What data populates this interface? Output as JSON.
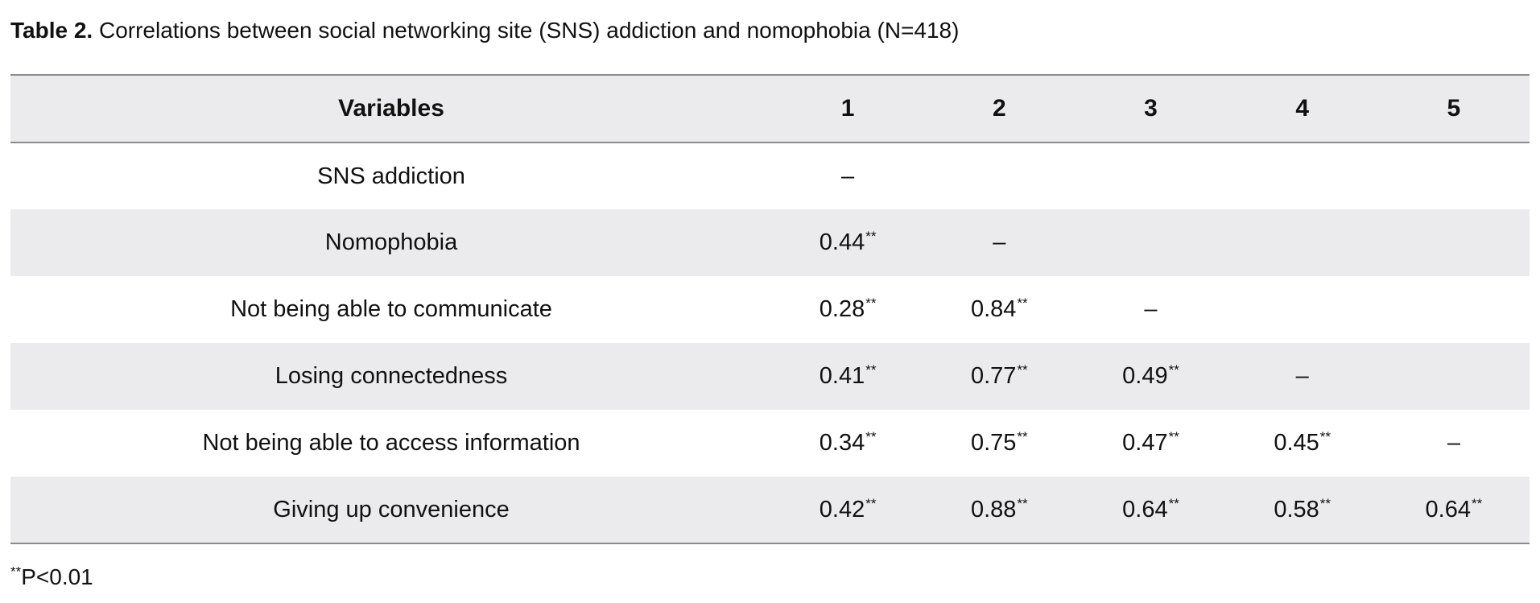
{
  "caption": {
    "label": "Table 2.",
    "text": " Correlations between social networking site (SNS) addiction and nomophobia (N=418)"
  },
  "table": {
    "header": [
      "Variables",
      "1",
      "2",
      "3",
      "4",
      "5"
    ],
    "rows": [
      {
        "variable": "SNS addiction",
        "cells": [
          {
            "v": "–",
            "s": ""
          },
          {
            "v": "",
            "s": ""
          },
          {
            "v": "",
            "s": ""
          },
          {
            "v": "",
            "s": ""
          },
          {
            "v": "",
            "s": ""
          }
        ]
      },
      {
        "variable": "Nomophobia",
        "cells": [
          {
            "v": "0.44",
            "s": "**"
          },
          {
            "v": "–",
            "s": ""
          },
          {
            "v": "",
            "s": ""
          },
          {
            "v": "",
            "s": ""
          },
          {
            "v": "",
            "s": ""
          }
        ]
      },
      {
        "variable": "Not being able to communicate",
        "cells": [
          {
            "v": "0.28",
            "s": "**"
          },
          {
            "v": "0.84",
            "s": "**"
          },
          {
            "v": "–",
            "s": ""
          },
          {
            "v": "",
            "s": ""
          },
          {
            "v": "",
            "s": ""
          }
        ]
      },
      {
        "variable": "Losing connectedness",
        "cells": [
          {
            "v": "0.41",
            "s": "**"
          },
          {
            "v": "0.77",
            "s": "**"
          },
          {
            "v": "0.49",
            "s": "**"
          },
          {
            "v": "–",
            "s": ""
          },
          {
            "v": "",
            "s": ""
          }
        ]
      },
      {
        "variable": "Not being able to access information",
        "cells": [
          {
            "v": "0.34",
            "s": "**"
          },
          {
            "v": "0.75",
            "s": "**"
          },
          {
            "v": "0.47",
            "s": "**"
          },
          {
            "v": "0.45",
            "s": "**"
          },
          {
            "v": "–",
            "s": ""
          }
        ]
      },
      {
        "variable": "Giving up convenience",
        "cells": [
          {
            "v": "0.42",
            "s": "**"
          },
          {
            "v": "0.88",
            "s": "**"
          },
          {
            "v": "0.64",
            "s": "**"
          },
          {
            "v": "0.58",
            "s": "**"
          },
          {
            "v": "0.64",
            "s": "**"
          }
        ]
      }
    ]
  },
  "footnote": {
    "mark": "**",
    "text": "P<0.01"
  }
}
